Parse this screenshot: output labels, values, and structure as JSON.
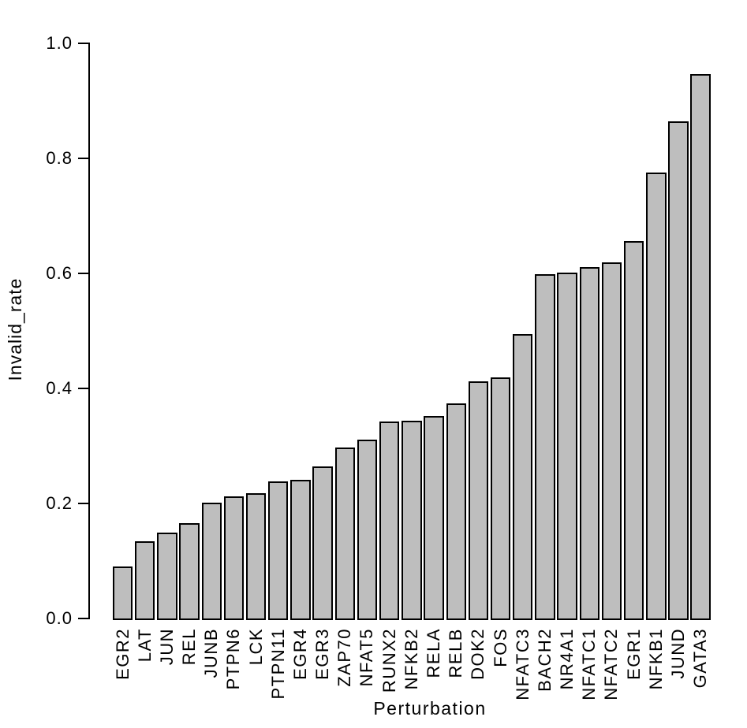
{
  "chart_data": {
    "type": "bar",
    "title": "",
    "xlabel": "Perturbation",
    "ylabel": "Invalid_rate",
    "categories": [
      "EGR2",
      "LAT",
      "JUN",
      "REL",
      "JUNB",
      "PTPN6",
      "LCK",
      "PTPN11",
      "EGR4",
      "EGR3",
      "ZAP70",
      "NFAT5",
      "RUNX2",
      "NFKB2",
      "RELA",
      "RELB",
      "DOK2",
      "FOS",
      "NFATC3",
      "BACH2",
      "NR4A1",
      "NFATC1",
      "NFATC2",
      "EGR1",
      "NFKB1",
      "JUND",
      "GATA3"
    ],
    "values": [
      0.091,
      0.134,
      0.149,
      0.166,
      0.202,
      0.213,
      0.218,
      0.238,
      0.241,
      0.265,
      0.297,
      0.311,
      0.342,
      0.344,
      0.352,
      0.374,
      0.412,
      0.419,
      0.494,
      0.599,
      0.601,
      0.611,
      0.619,
      0.656,
      0.775,
      0.865,
      0.946
    ],
    "ylim": [
      0.0,
      1.0
    ],
    "y_tick_labels": [
      "0.0",
      "0.2",
      "0.4",
      "0.6",
      "0.8",
      "1.0"
    ],
    "grid": false,
    "legend": "none",
    "bar_fill_color": "#bebebe",
    "bar_border_color": "#000000",
    "axis_color": "#000000",
    "text_color": "#000000",
    "background_color": "#ffffff"
  }
}
